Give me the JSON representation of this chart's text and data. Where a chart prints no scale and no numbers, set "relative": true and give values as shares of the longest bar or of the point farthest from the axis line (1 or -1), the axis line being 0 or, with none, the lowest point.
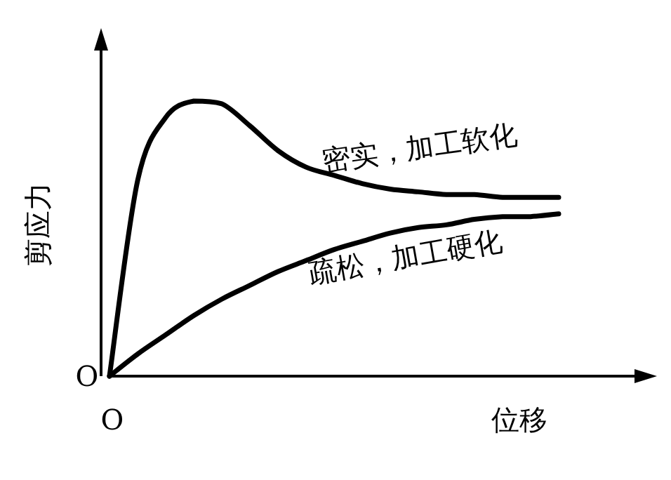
{
  "chart_data": {
    "type": "line",
    "relative": true,
    "ylabel": "剪应力",
    "xlabel": "位移",
    "annotations": [
      "O",
      "O"
    ],
    "categories": [
      null,
      null,
      null,
      null,
      null,
      null,
      null,
      null,
      null,
      null,
      null,
      null,
      null,
      null,
      null,
      null,
      null
    ],
    "series": [
      {
        "name": "密实，加工软化",
        "color": "#000000",
        "values": [
          0,
          0.71,
          0.94,
          1,
          0.99,
          0.91,
          0.82,
          0.76,
          0.73,
          0.7,
          0.68,
          0.67,
          0.66,
          0.66,
          0.65,
          0.65,
          0.65
        ]
      },
      {
        "name": "疏松，加工硬化",
        "color": "#000000",
        "values": [
          0,
          0.08,
          0.15,
          0.22,
          0.28,
          0.33,
          0.38,
          0.42,
          0.46,
          0.49,
          0.52,
          0.54,
          0.55,
          0.57,
          0.58,
          0.58,
          0.59
        ]
      }
    ]
  }
}
